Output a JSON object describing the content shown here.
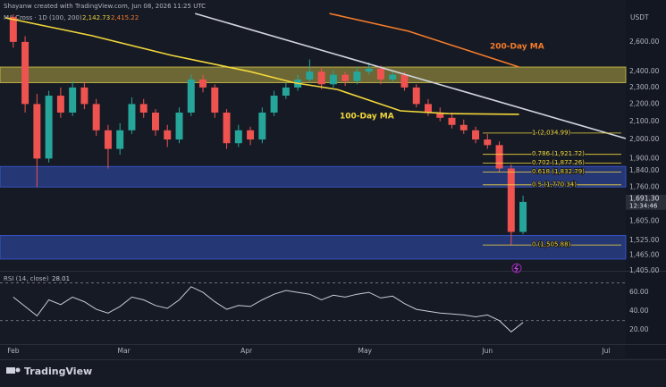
{
  "header": {
    "credit": "Shayanw created with TradingView.com, Jun 08, 2026 11:25 UTC",
    "indicator": "MA Cross · 1D (100, 200)",
    "indicator_values": [
      "2,142.73",
      "2,415.22"
    ],
    "currency": "USDT"
  },
  "chart_data": [
    {
      "type": "candlestick",
      "log_scale": true,
      "xlim": [
        -2,
        155
      ],
      "ylim": [
        1405,
        2910
      ],
      "up_color": "#26a69a",
      "down_color": "#ef5350",
      "x": [
        0,
        3,
        6,
        9,
        12,
        15,
        18,
        21,
        24,
        27,
        30,
        33,
        36,
        39,
        42,
        45,
        48,
        51,
        54,
        57,
        60,
        63,
        66,
        69,
        72,
        75,
        78,
        81,
        84,
        87,
        90,
        93,
        96,
        99,
        102,
        105,
        108,
        111,
        114,
        117,
        120,
        123,
        126,
        129
      ],
      "open": [
        2780,
        2600,
        2200,
        1900,
        2250,
        2150,
        2300,
        2200,
        2050,
        1950,
        2050,
        2200,
        2150,
        2050,
        2000,
        2150,
        2350,
        2300,
        2150,
        1980,
        2050,
        2000,
        2150,
        2250,
        2300,
        2350,
        2400,
        2320,
        2380,
        2340,
        2400,
        2420,
        2350,
        2380,
        2300,
        2200,
        2150,
        2120,
        2080,
        2050,
        2000,
        1970,
        1850,
        1560
      ],
      "high": [
        2800,
        2640,
        2260,
        2280,
        2300,
        2340,
        2330,
        2230,
        2080,
        2090,
        2240,
        2230,
        2170,
        2080,
        2180,
        2380,
        2380,
        2320,
        2170,
        2080,
        2070,
        2180,
        2280,
        2330,
        2380,
        2480,
        2430,
        2410,
        2400,
        2430,
        2460,
        2440,
        2410,
        2400,
        2320,
        2230,
        2180,
        2150,
        2110,
        2070,
        2030,
        1990,
        1870,
        1720
      ],
      "low": [
        2560,
        2150,
        1760,
        1880,
        2120,
        2130,
        2170,
        2020,
        1850,
        1920,
        2030,
        2120,
        2020,
        1960,
        1980,
        2130,
        2270,
        2120,
        1950,
        1960,
        1970,
        1980,
        2130,
        2230,
        2280,
        2330,
        2290,
        2300,
        2310,
        2320,
        2380,
        2320,
        2330,
        2280,
        2180,
        2130,
        2100,
        2060,
        2030,
        1980,
        1950,
        1830,
        1506,
        1550
      ],
      "close": [
        2600,
        2200,
        1900,
        2250,
        2150,
        2300,
        2200,
        2050,
        1950,
        2050,
        2200,
        2150,
        2050,
        2000,
        2150,
        2350,
        2300,
        2150,
        1980,
        2050,
        2000,
        2150,
        2250,
        2300,
        2350,
        2400,
        2320,
        2380,
        2340,
        2400,
        2420,
        2350,
        2380,
        2300,
        2200,
        2150,
        2120,
        2080,
        2050,
        2000,
        1970,
        1850,
        1560,
        1691
      ],
      "yticks": [
        {
          "value": 2600,
          "label": "2,600.00"
        },
        {
          "value": 2400,
          "label": "2,400.00"
        },
        {
          "value": 2300,
          "label": "2,300.00"
        },
        {
          "value": 2200,
          "label": "2,200.00"
        },
        {
          "value": 2100,
          "label": "2,100.00"
        },
        {
          "value": 2000,
          "label": "2,000.00"
        },
        {
          "value": 1900,
          "label": "1,900.00"
        },
        {
          "value": 1840,
          "label": "1,840.00"
        },
        {
          "value": 1760,
          "label": "1,760.00"
        },
        {
          "value": 1605,
          "label": "1,605.00"
        },
        {
          "value": 1525,
          "label": "1,525.00"
        },
        {
          "value": 1465,
          "label": "1,465.00"
        },
        {
          "value": 1405,
          "label": "1,405.00"
        }
      ],
      "zones": [
        {
          "color": "#d4c64a",
          "range": [
            2330,
            2430
          ]
        },
        {
          "color": "#3a5bd9",
          "range": [
            1760,
            1860
          ]
        },
        {
          "color": "#3a5bd9",
          "range": [
            1450,
            1545
          ]
        }
      ],
      "lines": [
        {
          "name": "100-Day MA",
          "color": "#f2d73a",
          "x": [
            -2,
            20,
            40,
            60,
            71,
            82,
            98,
            110,
            128
          ],
          "values": [
            2774,
            2643,
            2508,
            2400,
            2330,
            2288,
            2160,
            2144,
            2140
          ]
        },
        {
          "name": "200-Day MA",
          "color": "#f57c2a",
          "x": [
            80,
            100,
            128
          ],
          "values": [
            2806,
            2676,
            2430
          ]
        },
        {
          "color": "#d1d4dc",
          "x": [
            46,
            155
          ],
          "values": [
            2806,
            2005
          ]
        }
      ],
      "fib_levels": [
        {
          "value": 2034.99,
          "label": "1 (2,034.99)"
        },
        {
          "value": 1921.72,
          "label": "0.786 (1,921.72)"
        },
        {
          "value": 1877.26,
          "label": "0.702 (1,877.26)"
        },
        {
          "value": 1832.79,
          "label": "0.618 (1,832.79)"
        },
        {
          "value": 1770.34,
          "label": "0.5 (1,770.34)"
        },
        {
          "value": 1505.88,
          "label": "0 (1,505.88)"
        }
      ],
      "fib_color": "#f2d73a",
      "last_price": {
        "value": 1691.3,
        "label": "1,691.30",
        "countdown": "12:34:46"
      }
    },
    {
      "type": "line",
      "title": "RSI (14, close)",
      "xlim": [
        -2,
        155
      ],
      "ylim": [
        5,
        81
      ],
      "xticks": [
        {
          "value": 0,
          "label": "Feb"
        },
        {
          "value": 28,
          "label": "Mar"
        },
        {
          "value": 59,
          "label": "Apr"
        },
        {
          "value": 89,
          "label": "May"
        },
        {
          "value": 120,
          "label": "Jun"
        },
        {
          "value": 150,
          "label": "Jul"
        }
      ],
      "yticks": [
        {
          "value": 60,
          "label": "60.00"
        },
        {
          "value": 40,
          "label": "40.00"
        },
        {
          "value": 20,
          "label": "20.00"
        }
      ],
      "levels": [
        70,
        30
      ],
      "series": [
        {
          "color": "#c9ccd4",
          "x": [
            0,
            3,
            6,
            9,
            12,
            15,
            18,
            21,
            24,
            27,
            30,
            33,
            36,
            39,
            42,
            45,
            48,
            51,
            54,
            57,
            60,
            63,
            66,
            69,
            72,
            75,
            78,
            81,
            84,
            87,
            90,
            93,
            96,
            99,
            102,
            105,
            108,
            111,
            114,
            117,
            120,
            123,
            126,
            129
          ],
          "values": [
            55,
            45,
            35,
            52,
            47,
            55,
            50,
            42,
            38,
            45,
            55,
            52,
            46,
            43,
            52,
            66,
            60,
            50,
            42,
            46,
            45,
            52,
            58,
            62,
            60,
            58,
            52,
            57,
            55,
            58,
            60,
            54,
            56,
            48,
            42,
            40,
            38,
            37,
            36,
            34,
            36,
            30,
            18,
            28.01
          ]
        }
      ]
    }
  ],
  "footer": {
    "logo": "TradingView"
  }
}
